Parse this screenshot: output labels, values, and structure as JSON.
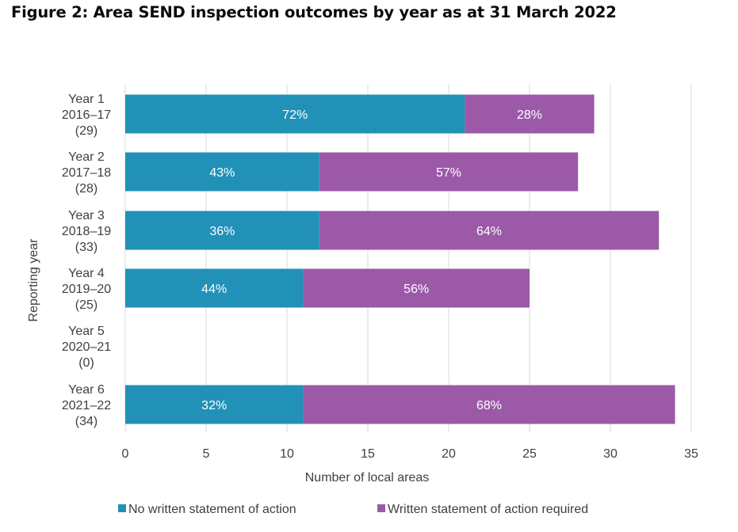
{
  "title": "Figure 2: Area SEND inspection outcomes by year as at 31 March 2022",
  "colors": {
    "no_wsoa": "#2191b8",
    "wsoa": "#9b59a8",
    "grid": "#d9d9d9",
    "text": "#404040"
  },
  "chart_data": {
    "type": "bar",
    "orientation": "horizontal",
    "stacked": true,
    "title": "Figure 2: Area SEND inspection outcomes by year as at 31 March 2022",
    "xlabel": "Number of local areas",
    "ylabel": "Reporting year",
    "xlim": [
      0,
      35
    ],
    "xticks": [
      "0",
      "5",
      "10",
      "15",
      "20",
      "25",
      "30",
      "35"
    ],
    "grid": "vertical",
    "legend_position": "bottom",
    "categories": [
      [
        "Year 1",
        "2016–17",
        "(29)"
      ],
      [
        "Year 2",
        "2017–18",
        "(28)"
      ],
      [
        "Year 3",
        "2018–19",
        "(33)"
      ],
      [
        "Year 4",
        "2019–20",
        "(25)"
      ],
      [
        "Year 5",
        "2020–21",
        "(0)"
      ],
      [
        "Year 6",
        "2021–22",
        "(34)"
      ]
    ],
    "series": [
      {
        "name": "No written statement of action",
        "color": "#2191b8",
        "values": [
          21,
          12,
          12,
          11,
          0,
          11
        ],
        "labels": [
          "72%",
          "43%",
          "36%",
          "44%",
          "",
          "32%"
        ]
      },
      {
        "name": "Written statement of action required",
        "color": "#9b59a8",
        "values": [
          8,
          16,
          21,
          14,
          0,
          23
        ],
        "labels": [
          "28%",
          "57%",
          "64%",
          "56%",
          "",
          "68%"
        ]
      }
    ]
  }
}
